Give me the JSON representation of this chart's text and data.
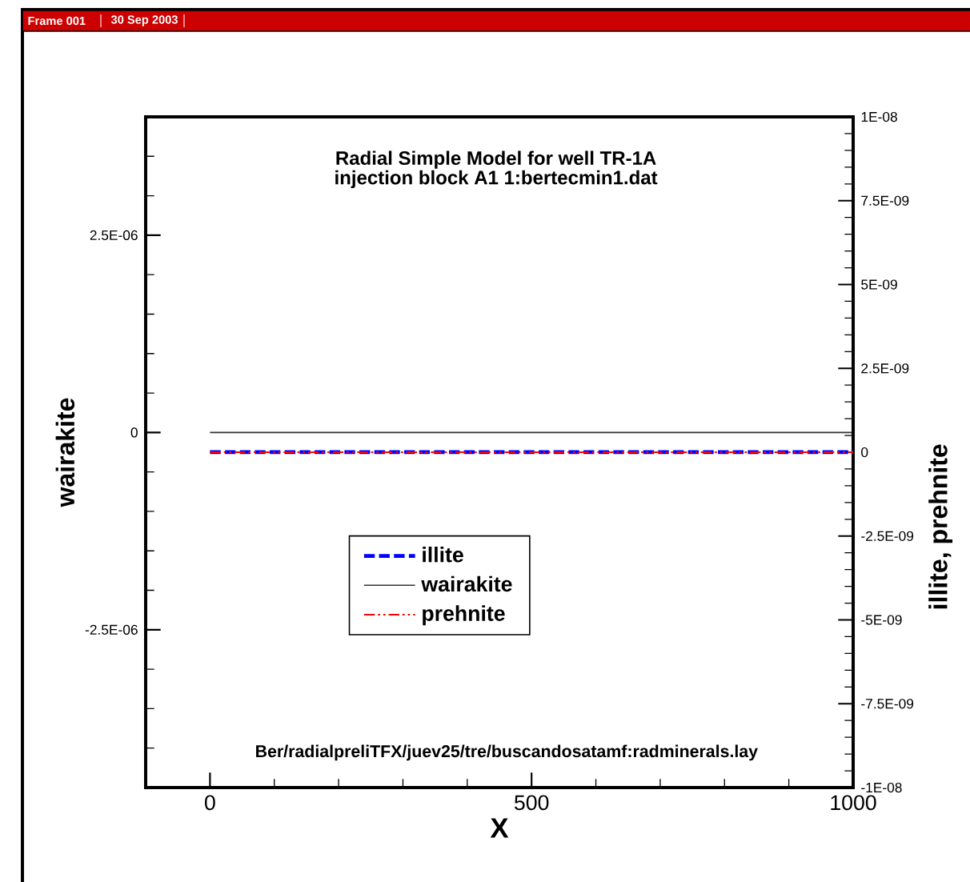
{
  "chart_data": {
    "type": "line",
    "title": "Radial Simple Model for well TR-1A",
    "subtitle": "injection block A1 1:bertecmin1.dat",
    "xlabel": "X",
    "ylabel": "wairakite",
    "y2label": "illite, prehnite",
    "annotations": [
      "Ber/radialpreliTFX/juev25/tre/buscandosatamf:radminerals.lay",
      "Frame 001",
      "30 Sep 2003"
    ],
    "x": [
      0,
      1000
    ],
    "series": [
      {
        "name": "illite",
        "color": "#0000ff",
        "values": [
          0,
          0
        ],
        "axis": "y2",
        "line_style": "dashed"
      },
      {
        "name": "wairakite",
        "color": "#333333",
        "values": [
          0,
          0
        ],
        "line_style": "solid"
      },
      {
        "name": "prehnite",
        "color": "#ff0000",
        "values": [
          0,
          0
        ],
        "axis": "y2",
        "line_style": "dashdotdotted"
      }
    ],
    "xlim": [
      -100,
      1000
    ],
    "xticks": [
      {
        "value": -100,
        "label": null
      },
      0,
      {
        "value": 100,
        "label": null
      },
      {
        "value": 200,
        "label": null
      },
      {
        "value": 300,
        "label": null
      },
      {
        "value": 400,
        "label": null
      },
      500,
      {
        "value": 600,
        "label": null
      },
      {
        "value": 700,
        "label": null
      },
      {
        "value": 800,
        "label": null
      },
      {
        "value": 900,
        "label": null
      },
      1000
    ],
    "ylim": [
      -4.5e-06,
      4e-06
    ],
    "yticks": [
      {
        "value": -4.5e-06,
        "label": null
      },
      {
        "value": -4e-06,
        "label": null
      },
      {
        "value": -3.5e-06,
        "label": null
      },
      {
        "value": -3e-06,
        "label": null
      },
      {
        "value": -2.5e-06,
        "label": "-2.5E-06"
      },
      {
        "value": -2e-06,
        "label": null
      },
      {
        "value": -1.5e-06,
        "label": null
      },
      {
        "value": -1e-06,
        "label": null
      },
      {
        "value": -5e-07,
        "label": null
      },
      0,
      {
        "value": 5e-07,
        "label": null
      },
      {
        "value": 1e-06,
        "label": null
      },
      {
        "value": 1.5e-06,
        "label": null
      },
      {
        "value": 2e-06,
        "label": null
      },
      {
        "value": 2.5e-06,
        "label": "2.5E-06"
      },
      {
        "value": 3e-06,
        "label": null
      },
      {
        "value": 3.5e-06,
        "label": null
      },
      {
        "value": 4e-06,
        "label": null
      }
    ],
    "y2lim": [
      -1e-08,
      1e-08
    ],
    "y2ticks": [
      {
        "value": -1e-08,
        "label": "-1E-08"
      },
      {
        "value": -9.5e-09,
        "label": null
      },
      {
        "value": -9e-09,
        "label": null
      },
      {
        "value": -8.5e-09,
        "label": null
      },
      {
        "value": -8e-09,
        "label": null
      },
      {
        "value": -7.5e-09,
        "label": "-7.5E-09"
      },
      {
        "value": -7e-09,
        "label": null
      },
      {
        "value": -6.5e-09,
        "label": null
      },
      {
        "value": -6e-09,
        "label": null
      },
      {
        "value": -5.5e-09,
        "label": null
      },
      {
        "value": -5e-09,
        "label": "-5E-09"
      },
      {
        "value": -4.5e-09,
        "label": null
      },
      {
        "value": -4e-09,
        "label": null
      },
      {
        "value": -3.5e-09,
        "label": null
      },
      {
        "value": -3e-09,
        "label": null
      },
      {
        "value": -2.5e-09,
        "label": "-2.5E-09"
      },
      {
        "value": -2e-09,
        "label": null
      },
      {
        "value": -1.5e-09,
        "label": null
      },
      {
        "value": -1e-09,
        "label": null
      },
      {
        "value": -5e-10,
        "label": null
      },
      0,
      {
        "value": 5e-10,
        "label": null
      },
      {
        "value": 1e-09,
        "label": null
      },
      {
        "value": 1.5e-09,
        "label": null
      },
      {
        "value": 2e-09,
        "label": null
      },
      {
        "value": 2.5e-09,
        "label": "2.5E-09"
      },
      {
        "value": 3e-09,
        "label": null
      },
      {
        "value": 3.5e-09,
        "label": null
      },
      {
        "value": 4e-09,
        "label": null
      },
      {
        "value": 4.5e-09,
        "label": null
      },
      {
        "value": 5e-09,
        "label": "5E-09"
      },
      {
        "value": 5.5e-09,
        "label": null
      },
      {
        "value": 6e-09,
        "label": null
      },
      {
        "value": 6.5e-09,
        "label": null
      },
      {
        "value": 7e-09,
        "label": null
      },
      {
        "value": 7.5e-09,
        "label": "7.5E-09"
      },
      {
        "value": 8e-09,
        "label": null
      },
      {
        "value": 8.5e-09,
        "label": null
      },
      {
        "value": 9e-09,
        "label": null
      },
      {
        "value": 9.5e-09,
        "label": null
      },
      {
        "value": 1e-08,
        "label": "1E-08"
      }
    ],
    "legend": "center"
  }
}
